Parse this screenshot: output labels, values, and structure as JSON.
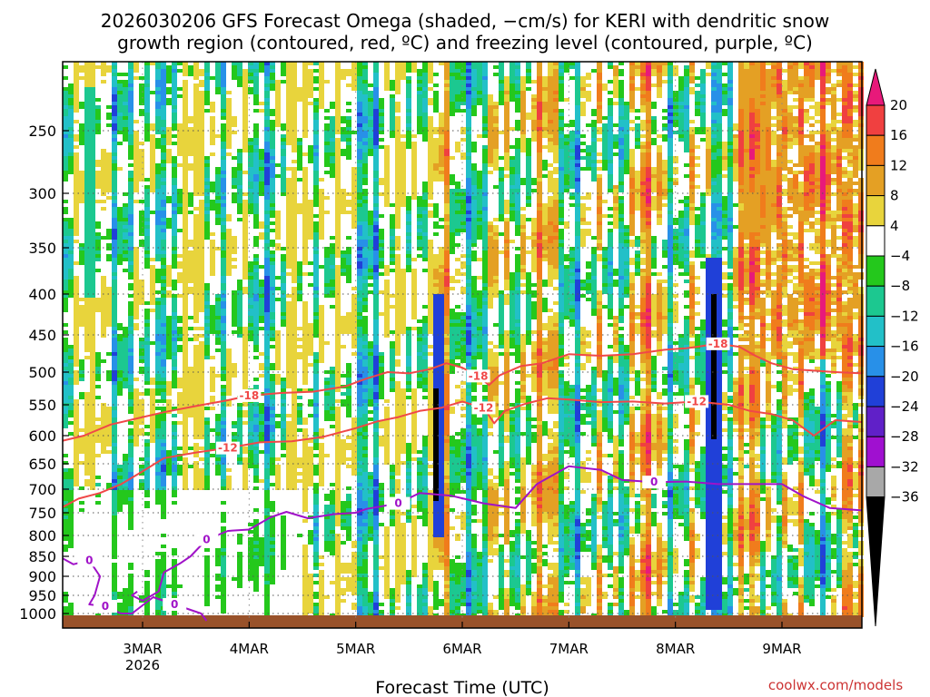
{
  "title_line1": "2026030206 GFS Forecast Omega (shaded, −cm/s) for KERI with dendritic snow",
  "title_line2": "growth region (contoured, red, ºC) and freezing level (contoured, purple, ºC)",
  "xlabel": "Forecast Time (UTC)",
  "credit": "coolwx.com/models",
  "credit_color": "#cc3333",
  "chart_data": {
    "type": "heatmap",
    "title": "2026030206 GFS Forecast Omega (shaded, −cm/s) for KERI with dendritic snow growth region (contoured, red, ºC) and freezing level (contoured, purple, ºC)",
    "xlabel": "Forecast Time (UTC)",
    "ylabel": "",
    "x_unit": "days from 00Z 2 Mar 2026",
    "xlim": [
      0.25,
      7.75
    ],
    "x_ticks": [
      {
        "label": "3MAR",
        "sub": "2026",
        "x": 1
      },
      {
        "label": "4MAR",
        "sub": "",
        "x": 2
      },
      {
        "label": "5MAR",
        "sub": "",
        "x": 3
      },
      {
        "label": "6MAR",
        "sub": "",
        "x": 4
      },
      {
        "label": "7MAR",
        "sub": "",
        "x": 5
      },
      {
        "label": "8MAR",
        "sub": "",
        "x": 6
      },
      {
        "label": "9MAR",
        "sub": "",
        "x": 7
      }
    ],
    "y_ticks": [
      {
        "label": "250",
        "p": 250
      },
      {
        "label": "300",
        "p": 300
      },
      {
        "label": "350",
        "p": 350
      },
      {
        "label": "400",
        "p": 400
      },
      {
        "label": "450",
        "p": 450
      },
      {
        "label": "500",
        "p": 500
      },
      {
        "label": "550",
        "p": 550
      },
      {
        "label": "600",
        "p": 600
      },
      {
        "label": "650",
        "p": 650
      },
      {
        "label": "700",
        "p": 700
      },
      {
        "label": "750",
        "p": 750
      },
      {
        "label": "800",
        "p": 800
      },
      {
        "label": "850",
        "p": 850
      },
      {
        "label": "900",
        "p": 900
      },
      {
        "label": "950",
        "p": 950
      },
      {
        "label": "1000",
        "p": 1000
      }
    ],
    "ylim_hPa": [
      200,
      1020
    ],
    "grid": true,
    "colorbar": {
      "ticks": [
        "20",
        "16",
        "12",
        "8",
        "4",
        "−4",
        "−8",
        "−12",
        "−16",
        "−20",
        "−24",
        "−28",
        "−32",
        "−36"
      ],
      "bins": [
        {
          "range": "> 20",
          "color": "#e8197a"
        },
        {
          "range": "16 to 20",
          "color": "#f04040"
        },
        {
          "range": "12 to 16",
          "color": "#f07c1c"
        },
        {
          "range": "8 to 12",
          "color": "#e4a024"
        },
        {
          "range": "4 to 8",
          "color": "#e8d43c"
        },
        {
          "range": "-4 to 4",
          "color": "#ffffff"
        },
        {
          "range": "-8 to -4",
          "color": "#24c81c"
        },
        {
          "range": "-12 to -8",
          "color": "#1cc890"
        },
        {
          "range": "-16 to -12",
          "color": "#22c0c8"
        },
        {
          "range": "-20 to -16",
          "color": "#2890e8"
        },
        {
          "range": "-24 to -20",
          "color": "#2040d8"
        },
        {
          "range": "-28 to -24",
          "color": "#6020c8"
        },
        {
          "range": "-32 to -28",
          "color": "#a010d0"
        },
        {
          "range": "-36 to -32",
          "color": "#a8a8a8"
        },
        {
          "range": "< -36",
          "color": "#000000"
        }
      ]
    },
    "contours": [
      {
        "label": "-18",
        "color": "#f04848",
        "points": [
          [
            0.25,
            609
          ],
          [
            0.45,
            600
          ],
          [
            0.7,
            582
          ],
          [
            0.95,
            572
          ],
          [
            1.2,
            562
          ],
          [
            1.5,
            552
          ],
          [
            1.8,
            543
          ],
          [
            2.0,
            536
          ],
          [
            2.3,
            532
          ],
          [
            2.6,
            530
          ],
          [
            2.9,
            522
          ],
          [
            3.1,
            510
          ],
          [
            3.3,
            500
          ],
          [
            3.5,
            502
          ],
          [
            3.7,
            496
          ],
          [
            3.85,
            488
          ],
          [
            4.0,
            494
          ],
          [
            4.15,
            506
          ],
          [
            4.25,
            520
          ],
          [
            4.35,
            505
          ],
          [
            4.55,
            492
          ],
          [
            4.75,
            488
          ],
          [
            5.0,
            476
          ],
          [
            5.3,
            478
          ],
          [
            5.6,
            476
          ],
          [
            5.9,
            470
          ],
          [
            6.1,
            468
          ],
          [
            6.4,
            462
          ],
          [
            6.6,
            466
          ],
          [
            6.75,
            478
          ],
          [
            6.9,
            488
          ],
          [
            7.1,
            496
          ],
          [
            7.3,
            498
          ],
          [
            7.5,
            500
          ],
          [
            7.75,
            502
          ]
        ]
      },
      {
        "label": "-12",
        "color": "#f04848",
        "points": [
          [
            0.25,
            738
          ],
          [
            0.4,
            720
          ],
          [
            0.6,
            708
          ],
          [
            0.8,
            690
          ],
          [
            1.0,
            665
          ],
          [
            1.2,
            640
          ],
          [
            1.5,
            630
          ],
          [
            1.8,
            622
          ],
          [
            2.1,
            612
          ],
          [
            2.4,
            610
          ],
          [
            2.7,
            602
          ],
          [
            3.0,
            588
          ],
          [
            3.2,
            577
          ],
          [
            3.4,
            570
          ],
          [
            3.6,
            560
          ],
          [
            3.8,
            555
          ],
          [
            4.0,
            545
          ],
          [
            4.2,
            555
          ],
          [
            4.3,
            580
          ],
          [
            4.4,
            560
          ],
          [
            4.6,
            548
          ],
          [
            4.8,
            540
          ],
          [
            5.0,
            542
          ],
          [
            5.3,
            546
          ],
          [
            5.6,
            545
          ],
          [
            5.9,
            548
          ],
          [
            6.2,
            545
          ],
          [
            6.5,
            550
          ],
          [
            6.7,
            560
          ],
          [
            6.9,
            565
          ],
          [
            7.1,
            575
          ],
          [
            7.3,
            600
          ],
          [
            7.5,
            575
          ],
          [
            7.75,
            578
          ]
        ]
      },
      {
        "label": "0",
        "color": "#a012c8",
        "points": [
          [
            0.25,
            855
          ],
          [
            0.35,
            870
          ],
          [
            0.5,
            860
          ],
          [
            0.6,
            900
          ],
          [
            0.55,
            950
          ],
          [
            0.5,
            975
          ],
          [
            0.65,
            980
          ],
          [
            0.8,
            1000
          ],
          [
            0.9,
            1000
          ],
          [
            1.1,
            955
          ],
          [
            1.3,
            975
          ],
          [
            1.55,
            1000
          ],
          [
            1.6,
            1010
          ]
        ]
      },
      {
        "label": "0",
        "color": "#a012c8",
        "points": [
          [
            0.95,
            940
          ],
          [
            0.9,
            950
          ],
          [
            1.0,
            965
          ],
          [
            1.15,
            940
          ],
          [
            1.2,
            890
          ],
          [
            1.35,
            868
          ],
          [
            1.45,
            850
          ],
          [
            1.6,
            810
          ],
          [
            1.8,
            790
          ],
          [
            2.0,
            787
          ],
          [
            2.2,
            760
          ],
          [
            2.35,
            748
          ],
          [
            2.55,
            762
          ],
          [
            2.8,
            753
          ],
          [
            3.0,
            750
          ],
          [
            3.1,
            742
          ],
          [
            3.4,
            730
          ],
          [
            3.6,
            708
          ],
          [
            3.9,
            714
          ],
          [
            4.2,
            730
          ],
          [
            4.5,
            740
          ],
          [
            4.7,
            690
          ],
          [
            5.0,
            655
          ],
          [
            5.3,
            662
          ],
          [
            5.5,
            682
          ],
          [
            5.8,
            686
          ],
          [
            6.1,
            685
          ],
          [
            6.4,
            690
          ],
          [
            6.7,
            690
          ],
          [
            7.0,
            690
          ],
          [
            7.2,
            715
          ],
          [
            7.45,
            740
          ],
          [
            7.75,
            745
          ]
        ]
      }
    ],
    "omega_features": [
      {
        "x": [
          0.45,
          0.55
        ],
        "p": [
          215,
          400
        ],
        "value": -12
      },
      {
        "x": [
          3.7,
          3.78
        ],
        "p": [
          400,
          800
        ],
        "value": -24
      },
      {
        "x": [
          3.72,
          3.76
        ],
        "p": [
          520,
          720
        ],
        "value": -40
      },
      {
        "x": [
          6.25,
          6.42
        ],
        "p": [
          360,
          980
        ],
        "value": -24
      },
      {
        "x": [
          6.3,
          6.36
        ],
        "p": [
          400,
          600
        ],
        "value": -40
      },
      {
        "x": [
          6.6,
          6.85
        ],
        "p": [
          200,
          340
        ],
        "value": 12
      },
      {
        "x": [
          6.8,
          6.85
        ],
        "p": [
          250,
          280
        ],
        "value": 16
      }
    ]
  }
}
